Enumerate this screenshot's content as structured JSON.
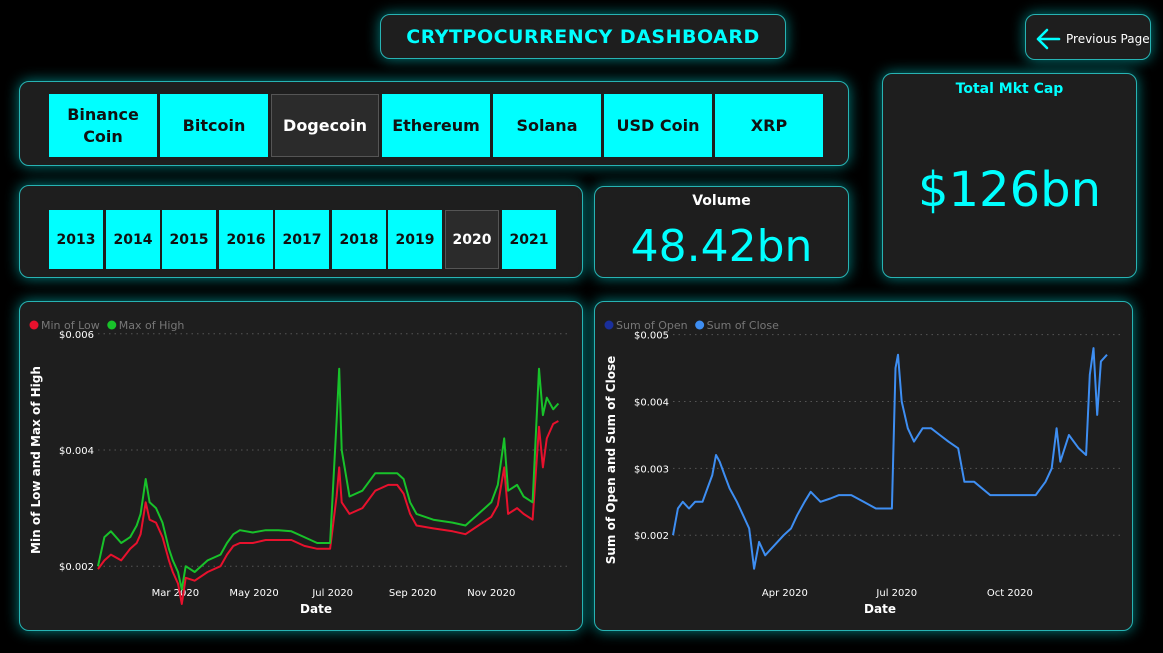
{
  "header": {
    "title": "CRYTPOCURRENCY DASHBOARD",
    "prev_label": "Previous Page"
  },
  "coins": [
    "Binance Coin",
    "Bitcoin",
    "Dogecoin",
    "Ethereum",
    "Solana",
    "USD Coin",
    "XRP"
  ],
  "selected_coin": "Dogecoin",
  "years": [
    "2013",
    "2014",
    "2015",
    "2016",
    "2017",
    "2018",
    "2019",
    "2020",
    "2021"
  ],
  "selected_year": "2020",
  "volume": {
    "label": "Volume",
    "value": "48.42bn"
  },
  "mktcap": {
    "label": "Total Mkt Cap",
    "value": "$126bn"
  },
  "colors": {
    "accent": "#00ffff",
    "low": "#e8112d",
    "high": "#18c22a",
    "open": "#1a2f9b",
    "close": "#3e8ef2"
  },
  "chart_data": [
    {
      "type": "line",
      "xlabel": "Date",
      "ylabel": "Min of Low and Max of High",
      "ylim": [
        0.0019,
        0.0061
      ],
      "y_ticks": [
        {
          "value": 0.002,
          "label": "$0.002"
        },
        {
          "value": 0.004,
          "label": "$0.004"
        },
        {
          "value": 0.006,
          "label": "$0.006"
        }
      ],
      "x_ticks": [
        {
          "x": 60,
          "label": "Mar 2020"
        },
        {
          "x": 121,
          "label": "May 2020"
        },
        {
          "x": 182,
          "label": "Jul 2020"
        },
        {
          "x": 244,
          "label": "Sep 2020"
        },
        {
          "x": 305,
          "label": "Nov 2020"
        }
      ],
      "xlim": [
        0,
        366
      ],
      "legend_position": "top-left",
      "grid": true,
      "series": [
        {
          "name": "Min of Low",
          "color": "#e8112d",
          "points": [
            [
              0,
              0.00195
            ],
            [
              5,
              0.0021
            ],
            [
              10,
              0.0022
            ],
            [
              18,
              0.0021
            ],
            [
              25,
              0.0023
            ],
            [
              30,
              0.0024
            ],
            [
              33,
              0.00255
            ],
            [
              37,
              0.0031
            ],
            [
              40,
              0.0028
            ],
            [
              45,
              0.00275
            ],
            [
              50,
              0.0025
            ],
            [
              55,
              0.0021
            ],
            [
              58,
              0.0019
            ],
            [
              62,
              0.0017
            ],
            [
              65,
              0.00135
            ],
            [
              68,
              0.0018
            ],
            [
              75,
              0.00175
            ],
            [
              85,
              0.0019
            ],
            [
              95,
              0.002
            ],
            [
              100,
              0.0022
            ],
            [
              105,
              0.00235
            ],
            [
              110,
              0.0024
            ],
            [
              120,
              0.0024
            ],
            [
              130,
              0.00245
            ],
            [
              140,
              0.00245
            ],
            [
              150,
              0.00245
            ],
            [
              160,
              0.00235
            ],
            [
              170,
              0.0023
            ],
            [
              180,
              0.0023
            ],
            [
              185,
              0.0032
            ],
            [
              187,
              0.0037
            ],
            [
              189,
              0.0031
            ],
            [
              195,
              0.0029
            ],
            [
              205,
              0.003
            ],
            [
              215,
              0.0033
            ],
            [
              225,
              0.0034
            ],
            [
              232,
              0.0034
            ],
            [
              237,
              0.00325
            ],
            [
              242,
              0.0029
            ],
            [
              247,
              0.0027
            ],
            [
              260,
              0.00265
            ],
            [
              275,
              0.0026
            ],
            [
              285,
              0.00255
            ],
            [
              295,
              0.0027
            ],
            [
              305,
              0.00285
            ],
            [
              310,
              0.00305
            ],
            [
              315,
              0.0037
            ],
            [
              318,
              0.0029
            ],
            [
              325,
              0.003
            ],
            [
              330,
              0.0029
            ],
            [
              337,
              0.0028
            ],
            [
              342,
              0.0044
            ],
            [
              345,
              0.0037
            ],
            [
              348,
              0.0042
            ],
            [
              353,
              0.00445
            ],
            [
              357,
              0.0045
            ]
          ]
        },
        {
          "name": "Max of High",
          "color": "#18c22a",
          "points": [
            [
              0,
              0.002
            ],
            [
              5,
              0.0025
            ],
            [
              10,
              0.0026
            ],
            [
              18,
              0.0024
            ],
            [
              25,
              0.0025
            ],
            [
              30,
              0.0027
            ],
            [
              33,
              0.0029
            ],
            [
              37,
              0.0035
            ],
            [
              40,
              0.0031
            ],
            [
              45,
              0.003
            ],
            [
              50,
              0.00275
            ],
            [
              55,
              0.0023
            ],
            [
              58,
              0.0021
            ],
            [
              62,
              0.0019
            ],
            [
              65,
              0.0016
            ],
            [
              68,
              0.002
            ],
            [
              75,
              0.0019
            ],
            [
              85,
              0.0021
            ],
            [
              95,
              0.0022
            ],
            [
              100,
              0.0024
            ],
            [
              105,
              0.00255
            ],
            [
              110,
              0.00262
            ],
            [
              120,
              0.00258
            ],
            [
              130,
              0.00262
            ],
            [
              140,
              0.00262
            ],
            [
              150,
              0.0026
            ],
            [
              160,
              0.0025
            ],
            [
              170,
              0.0024
            ],
            [
              180,
              0.0024
            ],
            [
              185,
              0.0045
            ],
            [
              187,
              0.0054
            ],
            [
              189,
              0.004
            ],
            [
              195,
              0.0032
            ],
            [
              205,
              0.0033
            ],
            [
              215,
              0.0036
            ],
            [
              225,
              0.0036
            ],
            [
              232,
              0.0036
            ],
            [
              237,
              0.0035
            ],
            [
              242,
              0.0031
            ],
            [
              247,
              0.0029
            ],
            [
              260,
              0.0028
            ],
            [
              275,
              0.00275
            ],
            [
              285,
              0.0027
            ],
            [
              295,
              0.0029
            ],
            [
              305,
              0.0031
            ],
            [
              310,
              0.0034
            ],
            [
              315,
              0.0042
            ],
            [
              318,
              0.0033
            ],
            [
              325,
              0.0034
            ],
            [
              330,
              0.0032
            ],
            [
              337,
              0.0031
            ],
            [
              342,
              0.0054
            ],
            [
              345,
              0.0046
            ],
            [
              348,
              0.0049
            ],
            [
              353,
              0.0047
            ],
            [
              357,
              0.0048
            ]
          ]
        }
      ]
    },
    {
      "type": "line",
      "xlabel": "Date",
      "ylabel": "Sum of Open and Sum of Close",
      "ylim": [
        0.00145,
        0.0051
      ],
      "y_ticks": [
        {
          "value": 0.002,
          "label": "$0.002"
        },
        {
          "value": 0.003,
          "label": "$0.003"
        },
        {
          "value": 0.004,
          "label": "$0.004"
        },
        {
          "value": 0.005,
          "label": "$0.005"
        }
      ],
      "x_ticks": [
        {
          "x": 91,
          "label": "Apr 2020"
        },
        {
          "x": 182,
          "label": "Jul 2020"
        },
        {
          "x": 274,
          "label": "Oct 2020"
        }
      ],
      "xlim": [
        0,
        366
      ],
      "legend_position": "top-left",
      "grid": true,
      "series": [
        {
          "name": "Sum of Open",
          "color": "#1a2f9b",
          "points": []
        },
        {
          "name": "Sum of Close",
          "color": "#3e8ef2",
          "points": [
            [
              0,
              0.002
            ],
            [
              4,
              0.0024
            ],
            [
              8,
              0.0025
            ],
            [
              13,
              0.0024
            ],
            [
              18,
              0.0025
            ],
            [
              24,
              0.0025
            ],
            [
              28,
              0.0027
            ],
            [
              32,
              0.0029
            ],
            [
              35,
              0.0032
            ],
            [
              38,
              0.0031
            ],
            [
              42,
              0.0029
            ],
            [
              46,
              0.0027
            ],
            [
              52,
              0.0025
            ],
            [
              57,
              0.0023
            ],
            [
              62,
              0.0021
            ],
            [
              66,
              0.0015
            ],
            [
              70,
              0.0019
            ],
            [
              75,
              0.0017
            ],
            [
              80,
              0.0018
            ],
            [
              85,
              0.0019
            ],
            [
              90,
              0.002
            ],
            [
              96,
              0.0021
            ],
            [
              101,
              0.0023
            ],
            [
              107,
              0.0025
            ],
            [
              112,
              0.00265
            ],
            [
              120,
              0.0025
            ],
            [
              128,
              0.00255
            ],
            [
              135,
              0.0026
            ],
            [
              145,
              0.0026
            ],
            [
              155,
              0.0025
            ],
            [
              165,
              0.0024
            ],
            [
              173,
              0.0024
            ],
            [
              178,
              0.0024
            ],
            [
              181,
              0.0045
            ],
            [
              183,
              0.0047
            ],
            [
              186,
              0.004
            ],
            [
              191,
              0.0036
            ],
            [
              196,
              0.0034
            ],
            [
              203,
              0.0036
            ],
            [
              210,
              0.0036
            ],
            [
              217,
              0.0035
            ],
            [
              224,
              0.0034
            ],
            [
              232,
              0.0033
            ],
            [
              237,
              0.0028
            ],
            [
              245,
              0.0028
            ],
            [
              258,
              0.0026
            ],
            [
              270,
              0.0026
            ],
            [
              284,
              0.0026
            ],
            [
              295,
              0.0026
            ],
            [
              303,
              0.0028
            ],
            [
              308,
              0.003
            ],
            [
              312,
              0.0036
            ],
            [
              315,
              0.0031
            ],
            [
              322,
              0.0035
            ],
            [
              330,
              0.0033
            ],
            [
              336,
              0.0032
            ],
            [
              339,
              0.0044
            ],
            [
              342,
              0.0048
            ],
            [
              345,
              0.0038
            ],
            [
              348,
              0.0046
            ],
            [
              353,
              0.0047
            ]
          ]
        }
      ]
    }
  ]
}
